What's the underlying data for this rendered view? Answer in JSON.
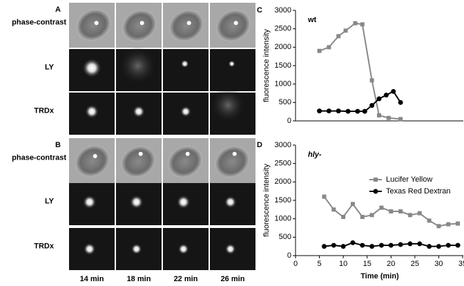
{
  "panels": [
    {
      "letter": "A",
      "rows": [
        "phase-contrast",
        "LY",
        "TRDx"
      ]
    },
    {
      "letter": "B",
      "rows": [
        "phase-contrast",
        "LY",
        "TRDx"
      ]
    }
  ],
  "columns": [
    "14 min",
    "18 min",
    "22 min",
    "26 min"
  ],
  "chart_data": [
    {
      "type": "line",
      "letter": "C",
      "title": "wt",
      "y_label": "fluorescence intensity",
      "xlim": [
        0,
        35
      ],
      "ylim": [
        0,
        3000
      ],
      "yticks": [
        0,
        500,
        1000,
        1500,
        2000,
        2500,
        3000
      ],
      "series": [
        {
          "color": "#888888",
          "marker": "square",
          "x": [
            5,
            7,
            9,
            10.5,
            12.5,
            14,
            16,
            17.5,
            19.5,
            22
          ],
          "values": [
            1900,
            2000,
            2300,
            2450,
            2650,
            2620,
            1100,
            150,
            80,
            50
          ]
        },
        {
          "color": "#000000",
          "marker": "circle",
          "x": [
            5,
            7,
            9,
            11,
            13,
            14.5,
            16,
            17.5,
            19,
            20.5,
            22
          ],
          "values": [
            270,
            270,
            270,
            260,
            260,
            260,
            420,
            600,
            700,
            800,
            500
          ]
        }
      ]
    },
    {
      "type": "line",
      "letter": "D",
      "title": "hly-",
      "y_label": "fluorescence intensity",
      "x_label": "Time (min)",
      "xlim": [
        0,
        35
      ],
      "xticks": [
        0,
        5,
        10,
        15,
        20,
        25,
        30,
        35
      ],
      "ylim": [
        0,
        3000
      ],
      "yticks": [
        0,
        500,
        1000,
        1500,
        2000,
        2500,
        3000
      ],
      "legend": "upper right",
      "series": [
        {
          "name": "Lucifer Yellow",
          "color": "#888888",
          "marker": "square",
          "x": [
            6,
            8,
            10,
            12,
            14,
            16,
            18,
            20,
            22,
            24,
            26,
            28,
            30,
            32,
            34
          ],
          "values": [
            1600,
            1250,
            1050,
            1400,
            1050,
            1100,
            1300,
            1200,
            1200,
            1100,
            1150,
            950,
            800,
            850,
            870
          ]
        },
        {
          "name": "Texas Red Dextran",
          "color": "#000000",
          "marker": "circle",
          "x": [
            6,
            8,
            10,
            12,
            14,
            16,
            18,
            20,
            22,
            24,
            26,
            28,
            30,
            32,
            34
          ],
          "values": [
            250,
            280,
            250,
            350,
            280,
            250,
            280,
            280,
            300,
            320,
            320,
            250,
            250,
            280,
            280
          ]
        }
      ]
    }
  ]
}
